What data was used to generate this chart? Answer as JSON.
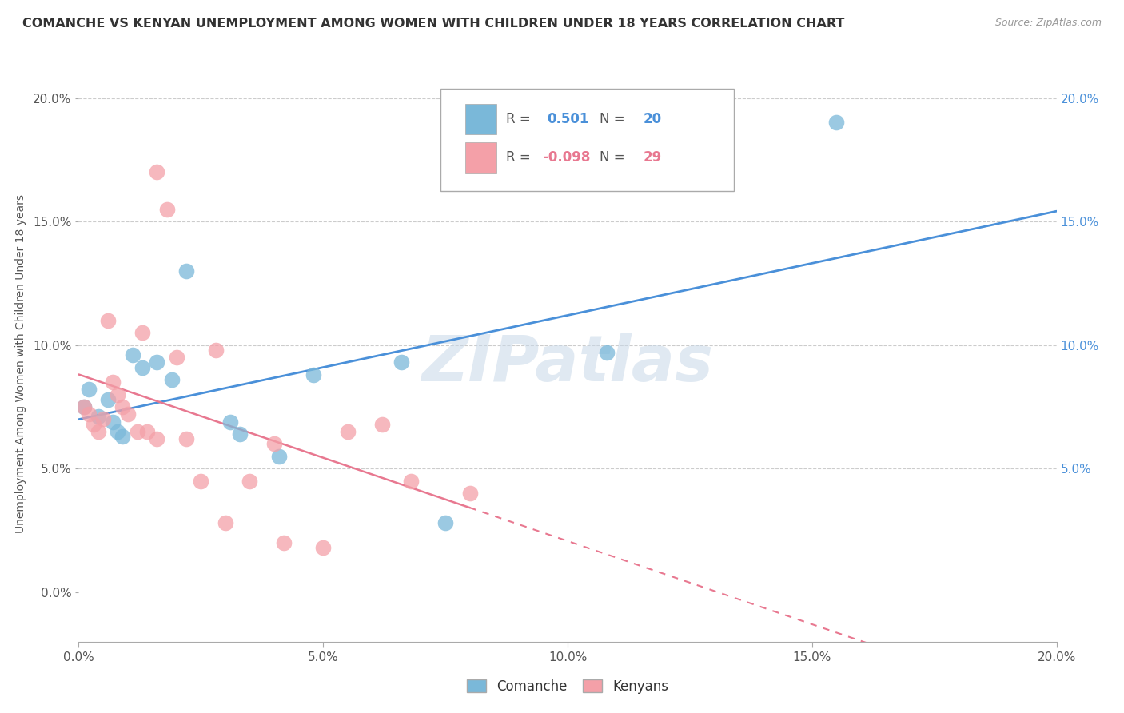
{
  "title": "COMANCHE VS KENYAN UNEMPLOYMENT AMONG WOMEN WITH CHILDREN UNDER 18 YEARS CORRELATION CHART",
  "source": "Source: ZipAtlas.com",
  "ylabel": "Unemployment Among Women with Children Under 18 years",
  "legend_bottom": [
    "Comanche",
    "Kenyans"
  ],
  "comanche_R": 0.501,
  "comanche_N": 20,
  "kenyan_R": -0.098,
  "kenyan_N": 29,
  "xlim": [
    0.0,
    0.2
  ],
  "ylim": [
    -0.02,
    0.205
  ],
  "comanche_color": "#7ab8d9",
  "kenyan_color": "#f4a0a8",
  "watermark": "ZIPatlas",
  "comanche_points": [
    [
      0.001,
      0.075
    ],
    [
      0.002,
      0.082
    ],
    [
      0.004,
      0.071
    ],
    [
      0.006,
      0.078
    ],
    [
      0.007,
      0.069
    ],
    [
      0.008,
      0.065
    ],
    [
      0.009,
      0.063
    ],
    [
      0.011,
      0.096
    ],
    [
      0.013,
      0.091
    ],
    [
      0.016,
      0.093
    ],
    [
      0.019,
      0.086
    ],
    [
      0.022,
      0.13
    ],
    [
      0.031,
      0.069
    ],
    [
      0.033,
      0.064
    ],
    [
      0.041,
      0.055
    ],
    [
      0.048,
      0.088
    ],
    [
      0.066,
      0.093
    ],
    [
      0.075,
      0.028
    ],
    [
      0.108,
      0.097
    ],
    [
      0.155,
      0.19
    ]
  ],
  "kenyan_points": [
    [
      0.001,
      0.075
    ],
    [
      0.002,
      0.072
    ],
    [
      0.003,
      0.068
    ],
    [
      0.004,
      0.065
    ],
    [
      0.005,
      0.07
    ],
    [
      0.006,
      0.11
    ],
    [
      0.007,
      0.085
    ],
    [
      0.008,
      0.08
    ],
    [
      0.009,
      0.075
    ],
    [
      0.01,
      0.072
    ],
    [
      0.012,
      0.065
    ],
    [
      0.013,
      0.105
    ],
    [
      0.014,
      0.065
    ],
    [
      0.016,
      0.062
    ],
    [
      0.016,
      0.17
    ],
    [
      0.018,
      0.155
    ],
    [
      0.02,
      0.095
    ],
    [
      0.022,
      0.062
    ],
    [
      0.025,
      0.045
    ],
    [
      0.028,
      0.098
    ],
    [
      0.03,
      0.028
    ],
    [
      0.035,
      0.045
    ],
    [
      0.04,
      0.06
    ],
    [
      0.042,
      0.02
    ],
    [
      0.05,
      0.018
    ],
    [
      0.055,
      0.065
    ],
    [
      0.062,
      0.068
    ],
    [
      0.068,
      0.045
    ],
    [
      0.08,
      0.04
    ]
  ]
}
